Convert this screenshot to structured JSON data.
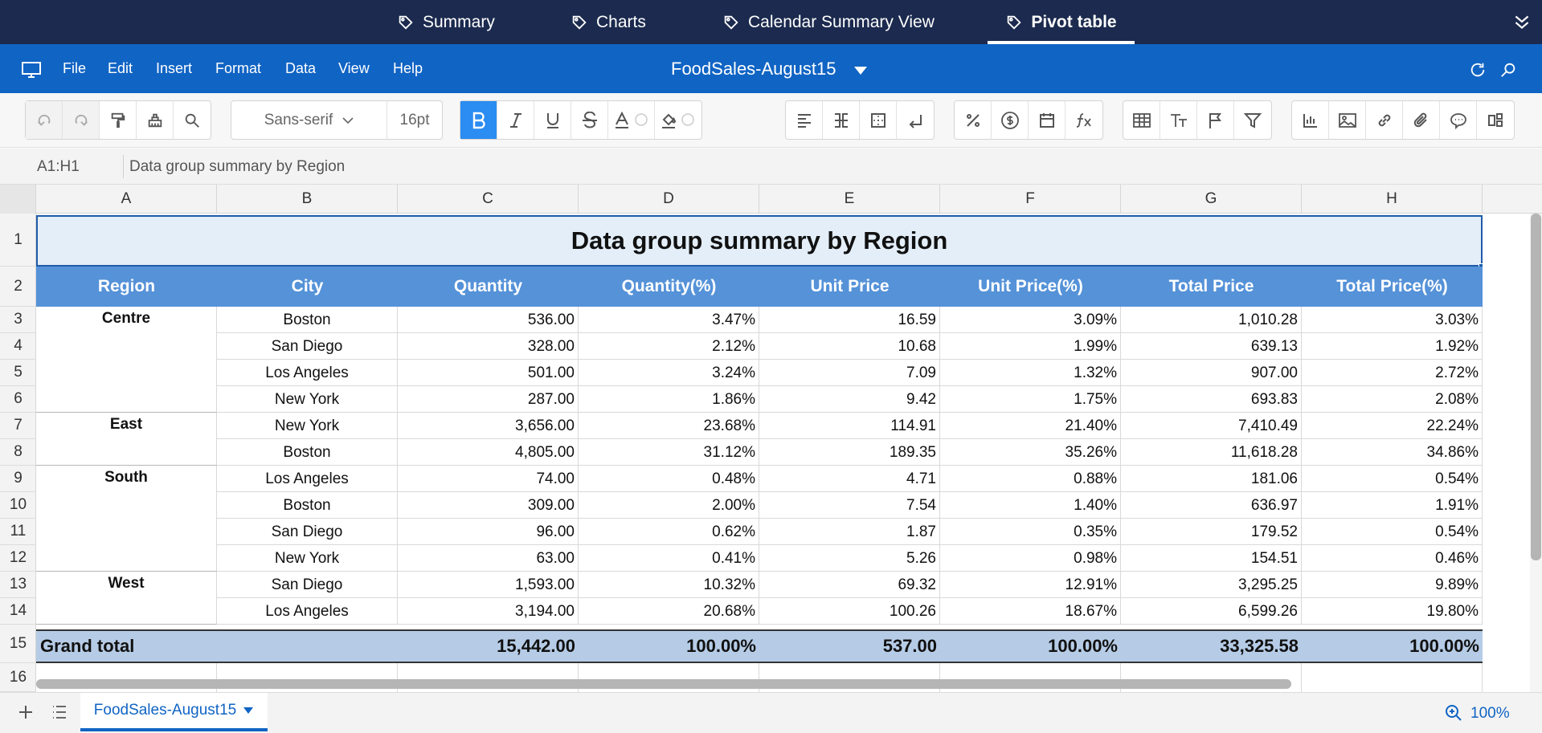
{
  "top_tabs": [
    {
      "label": "Summary",
      "active": false
    },
    {
      "label": "Charts",
      "active": false
    },
    {
      "label": "Calendar Summary View",
      "active": false
    },
    {
      "label": "Pivot table",
      "active": true
    }
  ],
  "menu": [
    "File",
    "Edit",
    "Insert",
    "Format",
    "Data",
    "View",
    "Help"
  ],
  "document_title": "FoodSales-August15",
  "toolbar": {
    "font_family": "Sans-serif",
    "font_size": "16pt",
    "bold_active": true,
    "icons": [
      "undo-icon",
      "redo-icon",
      "format-painter-icon",
      "clear-format-icon",
      "find-icon",
      "bold-icon",
      "italic-icon",
      "underline-icon",
      "strikethrough-icon",
      "font-color-icon",
      "fill-color-icon",
      "align-icon",
      "merge-icon",
      "border-icon",
      "wrap-icon",
      "percent-icon",
      "currency-icon",
      "date-icon",
      "function-icon",
      "table-icon",
      "text-size-icon",
      "flag-icon",
      "filter-icon",
      "chart-icon",
      "image-icon",
      "link-icon",
      "attachment-icon",
      "comment-icon",
      "more-icon"
    ]
  },
  "formula_bar": {
    "cell_ref": "A1:H1",
    "content": "Data group summary by Region"
  },
  "columns": [
    "A",
    "B",
    "C",
    "D",
    "E",
    "F",
    "G",
    "H"
  ],
  "row_numbers": [
    "1",
    "2",
    "3",
    "4",
    "5",
    "6",
    "7",
    "8",
    "9",
    "10",
    "11",
    "12",
    "13",
    "14",
    "15",
    "16"
  ],
  "table": {
    "title": "Data group summary by Region",
    "headers": [
      "Region",
      "City",
      "Quantity",
      "Quantity(%)",
      "Unit Price",
      "Unit Price(%)",
      "Total Price",
      "Total Price(%)"
    ],
    "groups": [
      {
        "region": "Centre",
        "rows": [
          {
            "city": "Boston",
            "quantity": "536.00",
            "quantity_pct": "3.47%",
            "unit_price": "16.59",
            "unit_price_pct": "3.09%",
            "total_price": "1,010.28",
            "total_price_pct": "3.03%"
          },
          {
            "city": "San Diego",
            "quantity": "328.00",
            "quantity_pct": "2.12%",
            "unit_price": "10.68",
            "unit_price_pct": "1.99%",
            "total_price": "639.13",
            "total_price_pct": "1.92%"
          },
          {
            "city": "Los Angeles",
            "quantity": "501.00",
            "quantity_pct": "3.24%",
            "unit_price": "7.09",
            "unit_price_pct": "1.32%",
            "total_price": "907.00",
            "total_price_pct": "2.72%"
          },
          {
            "city": "New York",
            "quantity": "287.00",
            "quantity_pct": "1.86%",
            "unit_price": "9.42",
            "unit_price_pct": "1.75%",
            "total_price": "693.83",
            "total_price_pct": "2.08%"
          }
        ]
      },
      {
        "region": "East",
        "rows": [
          {
            "city": "New York",
            "quantity": "3,656.00",
            "quantity_pct": "23.68%",
            "unit_price": "114.91",
            "unit_price_pct": "21.40%",
            "total_price": "7,410.49",
            "total_price_pct": "22.24%"
          },
          {
            "city": "Boston",
            "quantity": "4,805.00",
            "quantity_pct": "31.12%",
            "unit_price": "189.35",
            "unit_price_pct": "35.26%",
            "total_price": "11,618.28",
            "total_price_pct": "34.86%"
          }
        ]
      },
      {
        "region": "South",
        "rows": [
          {
            "city": "Los Angeles",
            "quantity": "74.00",
            "quantity_pct": "0.48%",
            "unit_price": "4.71",
            "unit_price_pct": "0.88%",
            "total_price": "181.06",
            "total_price_pct": "0.54%"
          },
          {
            "city": "Boston",
            "quantity": "309.00",
            "quantity_pct": "2.00%",
            "unit_price": "7.54",
            "unit_price_pct": "1.40%",
            "total_price": "636.97",
            "total_price_pct": "1.91%"
          },
          {
            "city": "San Diego",
            "quantity": "96.00",
            "quantity_pct": "0.62%",
            "unit_price": "1.87",
            "unit_price_pct": "0.35%",
            "total_price": "179.52",
            "total_price_pct": "0.54%"
          },
          {
            "city": "New York",
            "quantity": "63.00",
            "quantity_pct": "0.41%",
            "unit_price": "5.26",
            "unit_price_pct": "0.98%",
            "total_price": "154.51",
            "total_price_pct": "0.46%"
          }
        ]
      },
      {
        "region": "West",
        "rows": [
          {
            "city": "San Diego",
            "quantity": "1,593.00",
            "quantity_pct": "10.32%",
            "unit_price": "69.32",
            "unit_price_pct": "12.91%",
            "total_price": "3,295.25",
            "total_price_pct": "9.89%"
          },
          {
            "city": "Los Angeles",
            "quantity": "3,194.00",
            "quantity_pct": "20.68%",
            "unit_price": "100.26",
            "unit_price_pct": "18.67%",
            "total_price": "6,599.26",
            "total_price_pct": "19.80%"
          }
        ]
      }
    ],
    "grand_total": {
      "label": "Grand total",
      "quantity": "15,442.00",
      "quantity_pct": "100.00%",
      "unit_price": "537.00",
      "unit_price_pct": "100.00%",
      "total_price": "33,325.58",
      "total_price_pct": "100.00%"
    }
  },
  "sheet_tabs": [
    {
      "label": "FoodSales-August15",
      "active": true
    }
  ],
  "zoom": "100%",
  "colors": {
    "tab_bar": "#1b2a4e",
    "menu_bar": "#1064c4",
    "header_row": "#5592d8",
    "title_fill": "#e3eef9",
    "total_fill": "#b6cce6",
    "bold_active": "#2b8cf1"
  }
}
